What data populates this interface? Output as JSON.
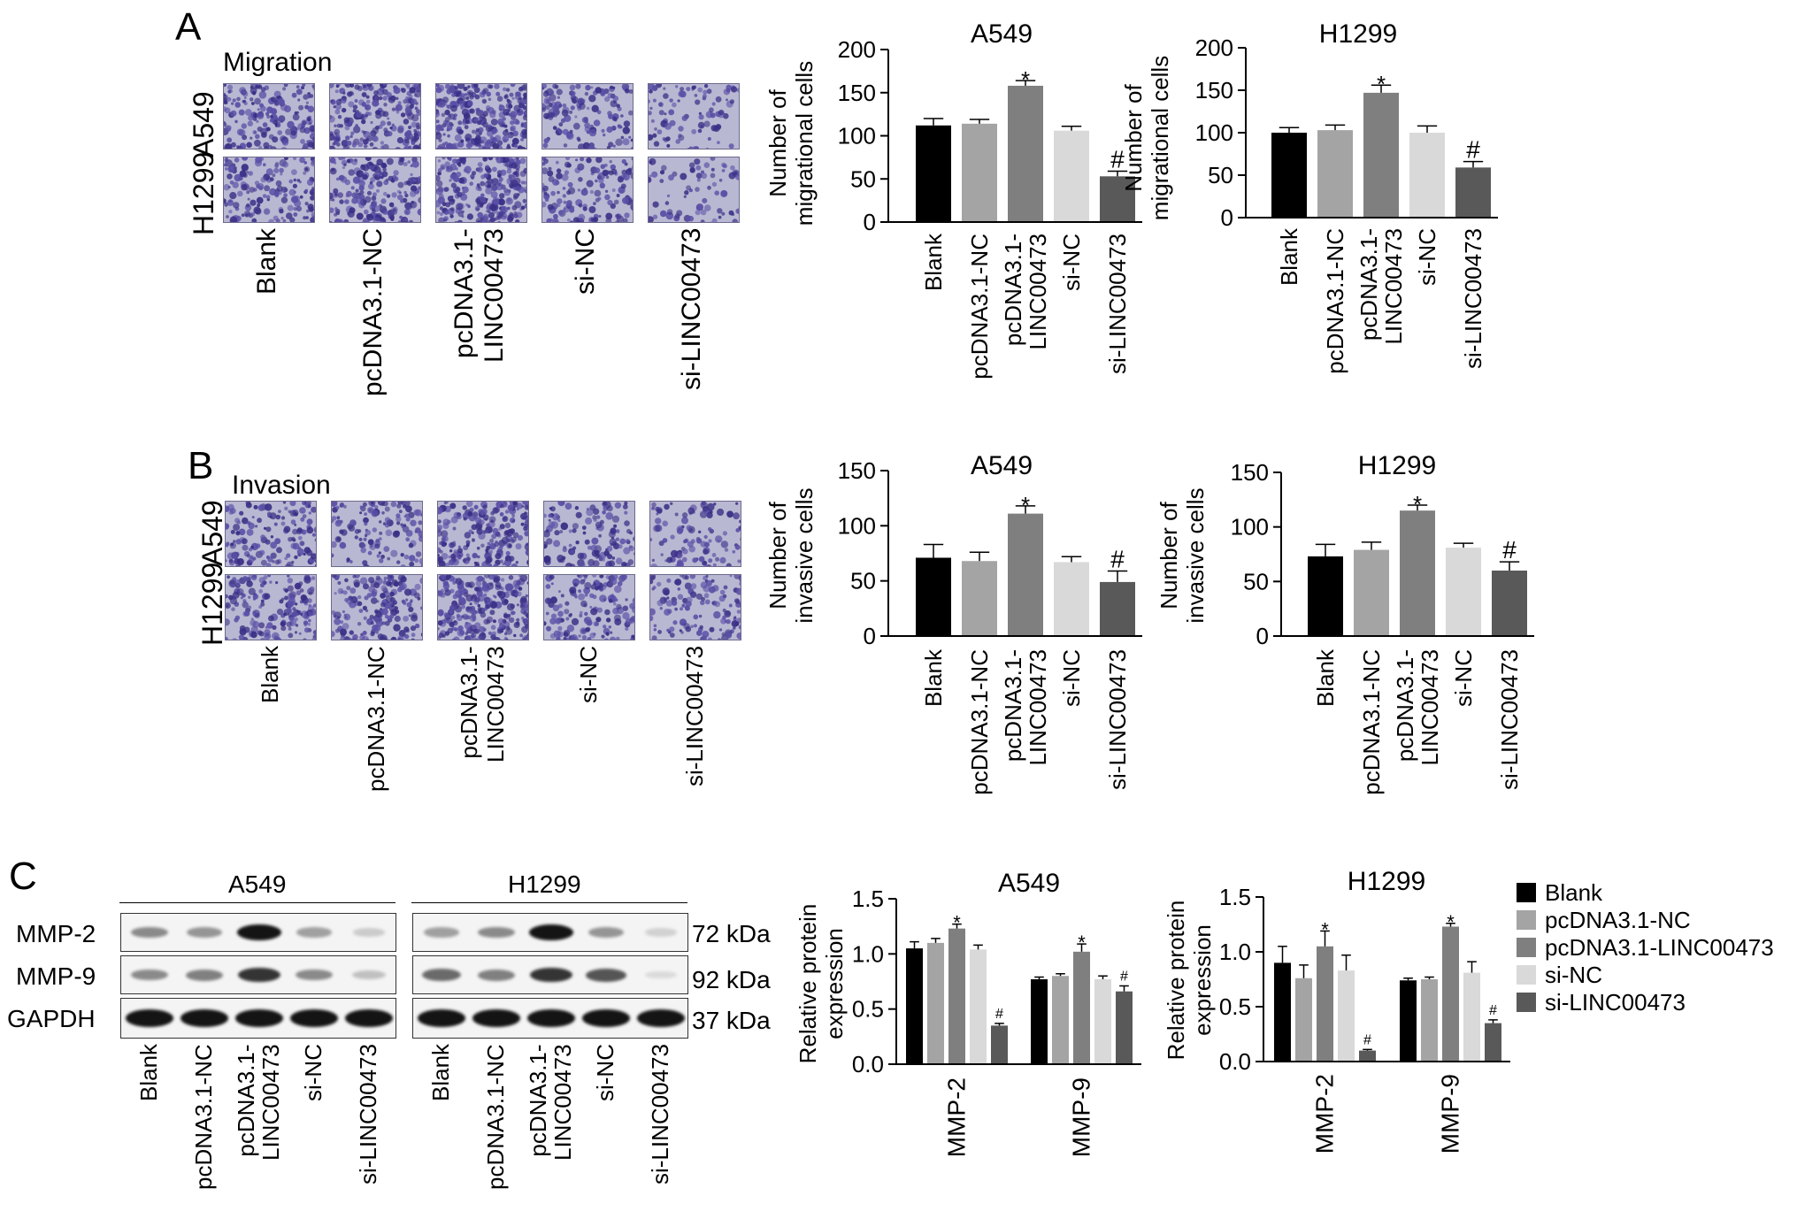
{
  "panels": {
    "a": {
      "letter": "A",
      "title": "Migration",
      "row_labels": [
        "A549",
        "H1299"
      ],
      "groups": [
        "Blank",
        "pcDNA3.1-NC",
        "pcDNA3.1-\nLINC00473",
        "si-NC",
        "si-LINC00473"
      ],
      "densities": [
        [
          0.55,
          0.7,
          0.95,
          0.4,
          0.2
        ],
        [
          0.45,
          0.6,
          0.85,
          0.4,
          0.12
        ]
      ]
    },
    "b": {
      "letter": "B",
      "title": "Invasion",
      "row_labels": [
        "A549",
        "H1299"
      ],
      "groups": [
        "Blank",
        "pcDNA3.1-NC",
        "pcDNA3.1-\nLINC00473",
        "si-NC",
        "si-LINC00473"
      ],
      "densities": [
        [
          0.4,
          0.35,
          0.7,
          0.35,
          0.25
        ],
        [
          0.5,
          0.5,
          0.85,
          0.45,
          0.35
        ]
      ]
    },
    "c": {
      "letter": "C",
      "blots": [
        {
          "cell_line": "A549"
        },
        {
          "cell_line": "H1299"
        }
      ],
      "proteins": [
        "MMP-2",
        "MMP-9",
        "GAPDH"
      ],
      "sizes": [
        "72 kDa",
        "92 kDa",
        "37 kDa"
      ],
      "lanes": [
        "Blank",
        "pcDNA3.1-NC",
        "pcDNA3.1-\nLINC00473",
        "si-NC",
        "si-LINC00473"
      ],
      "band_intensity": {
        "A549": [
          [
            0.45,
            0.4,
            1.0,
            0.35,
            0.15
          ],
          [
            0.45,
            0.5,
            0.85,
            0.45,
            0.2
          ],
          [
            1,
            1,
            1,
            1,
            1
          ]
        ],
        "H1299": [
          [
            0.35,
            0.45,
            1.0,
            0.4,
            0.12
          ],
          [
            0.6,
            0.5,
            0.85,
            0.7,
            0.08
          ],
          [
            1,
            1,
            1,
            1,
            1
          ]
        ]
      },
      "legend": [
        {
          "label": "Blank",
          "color": "#000000"
        },
        {
          "label": "pcDNA3.1-NC",
          "color": "#a4a4a4"
        },
        {
          "label": "pcDNA3.1-LINC00473",
          "color": "#7f7f7f"
        },
        {
          "label": "si-NC",
          "color": "#d9d9d9"
        },
        {
          "label": "si-LINC00473",
          "color": "#595959"
        }
      ]
    }
  },
  "colors": {
    "Blank": "#000000",
    "pcDNA3.1-NC": "#a4a4a4",
    "pcDNA3.1-LINC00473": "#7f7f7f",
    "si-NC": "#d9d9d9",
    "si-LINC00473": "#595959"
  },
  "chart_data": [
    {
      "type": "bar",
      "title": "A549",
      "ylabel": "Number of\nmigrational cells",
      "categories": [
        "Blank",
        "pcDNA3.1-NC",
        "pcDNA3.1-\nLINC00473",
        "si-NC",
        "si-LINC00473"
      ],
      "values": [
        112,
        114,
        158,
        106,
        53
      ],
      "errors": [
        8,
        5,
        6,
        5,
        6
      ],
      "annotations": [
        "",
        "",
        "*",
        "",
        "#"
      ],
      "ylim": [
        0,
        200
      ],
      "yticks": [
        0,
        50,
        100,
        150,
        200
      ]
    },
    {
      "type": "bar",
      "title": "H1299",
      "ylabel": "Number of\nmigrational cells",
      "categories": [
        "Blank",
        "pcDNA3.1-NC",
        "pcDNA3.1-\nLINC00473",
        "si-NC",
        "si-LINC00473"
      ],
      "values": [
        100,
        103,
        147,
        100,
        59
      ],
      "errors": [
        6,
        6,
        9,
        8,
        7
      ],
      "annotations": [
        "",
        "",
        "*",
        "",
        "#"
      ],
      "ylim": [
        0,
        200
      ],
      "yticks": [
        0,
        50,
        100,
        150,
        200
      ]
    },
    {
      "type": "bar",
      "title": "A549",
      "ylabel": "Number of\ninvasive cells",
      "categories": [
        "Blank",
        "pcDNA3.1-NC",
        "pcDNA3.1-\nLINC00473",
        "si-NC",
        "si-LINC00473"
      ],
      "values": [
        71,
        68,
        111,
        67,
        49
      ],
      "errors": [
        12,
        8,
        7,
        5,
        10
      ],
      "annotations": [
        "",
        "",
        "*",
        "",
        "#"
      ],
      "ylim": [
        0,
        150
      ],
      "yticks": [
        0,
        50,
        100,
        150
      ]
    },
    {
      "type": "bar",
      "title": "H1299",
      "ylabel": "Number of\ninvasive cells",
      "categories": [
        "Blank",
        "pcDNA3.1-NC",
        "pcDNA3.1-\nLINC00473",
        "si-NC",
        "si-LINC00473"
      ],
      "values": [
        73,
        79,
        115,
        81,
        60
      ],
      "errors": [
        11,
        7,
        5,
        4,
        8
      ],
      "annotations": [
        "",
        "",
        "*",
        "",
        "#"
      ],
      "ylim": [
        0,
        150
      ],
      "yticks": [
        0,
        50,
        100,
        150
      ]
    },
    {
      "type": "bar",
      "title": "A549",
      "ylabel": "Relative protein\nexpression",
      "categories": [
        "MMP-2",
        "MMP-9"
      ],
      "series": [
        {
          "name": "Blank",
          "values": [
            1.05,
            0.77
          ],
          "errors": [
            0.06,
            0.02
          ]
        },
        {
          "name": "pcDNA3.1-NC",
          "values": [
            1.1,
            0.8
          ],
          "errors": [
            0.04,
            0.02
          ]
        },
        {
          "name": "pcDNA3.1-LINC00473",
          "values": [
            1.23,
            1.02
          ],
          "errors": [
            0.04,
            0.07
          ]
        },
        {
          "name": "si-NC",
          "values": [
            1.04,
            0.77
          ],
          "errors": [
            0.04,
            0.03
          ]
        },
        {
          "name": "si-LINC00473",
          "values": [
            0.35,
            0.66
          ],
          "errors": [
            0.02,
            0.05
          ]
        }
      ],
      "annotations": [
        [
          "",
          "",
          "*",
          "",
          "#"
        ],
        [
          "",
          "",
          "*",
          "",
          "#"
        ]
      ],
      "ylim": [
        0,
        1.5
      ],
      "yticks": [
        0.0,
        0.5,
        1.0,
        1.5
      ]
    },
    {
      "type": "bar",
      "title": "H1299",
      "ylabel": "Relative protein\nexpression",
      "categories": [
        "MMP-2",
        "MMP-9"
      ],
      "series": [
        {
          "name": "Blank",
          "values": [
            0.9,
            0.74
          ],
          "errors": [
            0.15,
            0.02
          ]
        },
        {
          "name": "pcDNA3.1-NC",
          "values": [
            0.76,
            0.75
          ],
          "errors": [
            0.12,
            0.02
          ]
        },
        {
          "name": "pcDNA3.1-LINC00473",
          "values": [
            1.05,
            1.23
          ],
          "errors": [
            0.14,
            0.03
          ]
        },
        {
          "name": "si-NC",
          "values": [
            0.83,
            0.81
          ],
          "errors": [
            0.14,
            0.1
          ]
        },
        {
          "name": "si-LINC00473",
          "values": [
            0.1,
            0.35
          ],
          "errors": [
            0.01,
            0.03
          ]
        }
      ],
      "annotations": [
        [
          "",
          "",
          "*",
          "",
          "#"
        ],
        [
          "",
          "",
          "*",
          "",
          "#"
        ]
      ],
      "ylim": [
        0,
        1.5
      ],
      "yticks": [
        0.0,
        0.5,
        1.0,
        1.5
      ]
    }
  ]
}
